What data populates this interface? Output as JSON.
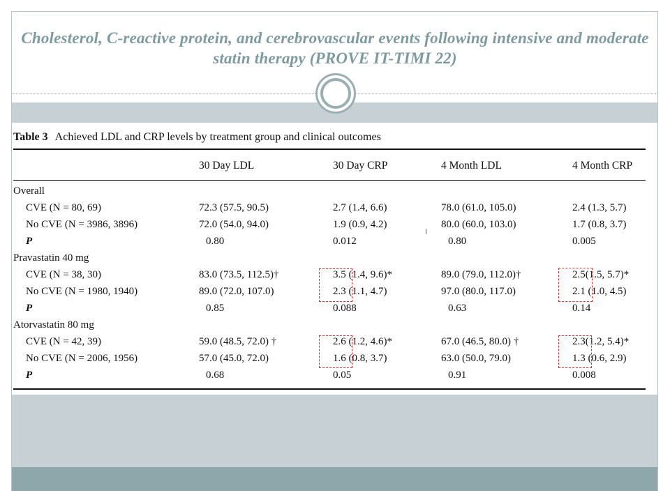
{
  "slide": {
    "title": "Cholesterol, C-reactive protein, and cerebrovascular events following intensive and moderate statin therapy (PROVE IT-TIMI 22)"
  },
  "table": {
    "label": "Table 3",
    "caption": "Achieved LDL and CRP levels by treatment group and clinical outcomes",
    "columns": [
      "30 Day LDL",
      "30 Day CRP",
      "4 Month LDL",
      "4 Month CRP"
    ],
    "groups": [
      {
        "name": "Overall",
        "rows": [
          {
            "label": "CVE (N = 80, 69)",
            "values": [
              "72.3 (57.5, 90.5)",
              "2.7 (1.4, 6.6)",
              "78.0 (61.0, 105.0)",
              "2.4 (1.3, 5.7)"
            ]
          },
          {
            "label": "No CVE (N = 3986, 3896)",
            "values": [
              "72.0 (54.0, 94.0)",
              "1.9 (0.9, 4.2)",
              "80.0 (60.0, 103.0)",
              "1.7 (0.8, 3.7)"
            ]
          },
          {
            "label": "P",
            "values": [
              "0.80",
              "0.012",
              "0.80",
              "0.005"
            ]
          }
        ]
      },
      {
        "name": "Pravastatin 40 mg",
        "rows": [
          {
            "label": "CVE (N = 38, 30)",
            "values": [
              "83.0 (73.5, 112.5)†",
              "3.5 (1.4, 9.6)*",
              "89.0 (79.0, 112.0)†",
              "2.5(1.5, 5.7)*"
            ]
          },
          {
            "label": "No CVE (N = 1980, 1940)",
            "values": [
              "89.0 (72.0, 107.0)",
              "2.3 (1.1, 4.7)",
              "97.0 (80.0, 117.0)",
              "2.1 (1.0, 4.5)"
            ]
          },
          {
            "label": "P",
            "values": [
              "0.85",
              "0.088",
              "0.63",
              "0.14"
            ]
          }
        ]
      },
      {
        "name": "Atorvastatin 80 mg",
        "rows": [
          {
            "label": "CVE (N = 42, 39)",
            "values": [
              "59.0 (48.5, 72.0) †",
              "2.6 (1.2, 4.6)*",
              "67.0 (46.5, 80.0) †",
              "2.3(1.2, 5.4)*"
            ]
          },
          {
            "label": "No CVE (N = 2006, 1956)",
            "values": [
              "57.0 (45.0, 72.0)",
              "1.6 (0.8, 3.7)",
              "63.0 (50.0, 79.0)",
              "1.3 (0.6, 2.9)"
            ]
          },
          {
            "label": "P",
            "values": [
              "0.68",
              "0.05",
              "0.91",
              "0.008"
            ]
          }
        ]
      }
    ]
  }
}
